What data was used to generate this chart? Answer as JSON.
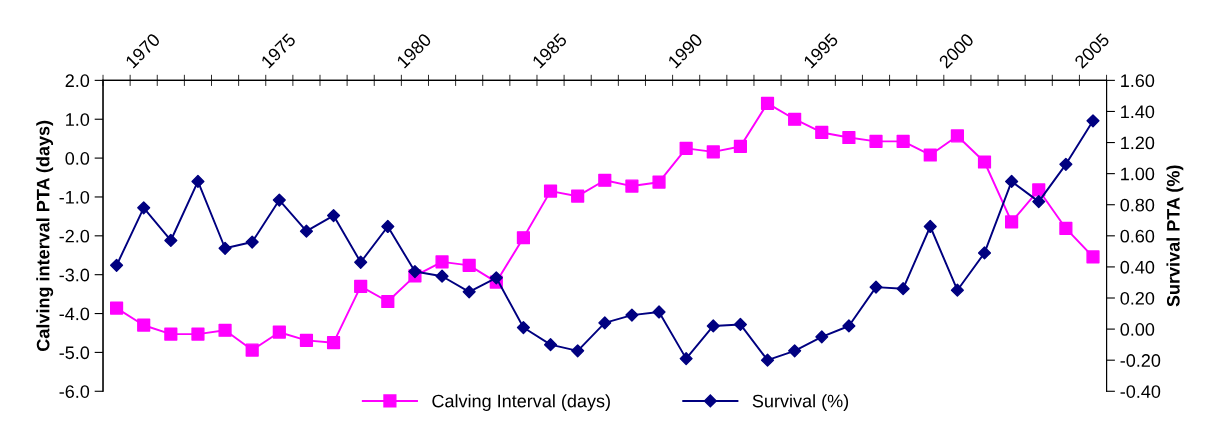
{
  "chart_data": {
    "type": "line",
    "xlabel": null,
    "ylabel": "Calving interval PTA (days)",
    "y2label": "Survival PTA (%)",
    "categories": [
      null,
      "1970",
      null,
      null,
      null,
      null,
      "1975",
      null,
      null,
      null,
      null,
      "1980",
      null,
      null,
      null,
      null,
      "1985",
      null,
      null,
      null,
      null,
      "1990",
      null,
      null,
      null,
      null,
      "1995",
      null,
      null,
      null,
      null,
      "2000",
      null,
      null,
      null,
      null,
      "2005"
    ],
    "series": [
      {
        "name": "Calving Interval (days)",
        "color": "#ff00ff",
        "marker": "square",
        "values": [
          -3.86,
          -4.3,
          -4.53,
          -4.53,
          -4.43,
          -4.94,
          -4.48,
          -4.69,
          -4.75,
          -3.3,
          -3.69,
          -3.03,
          -2.67,
          -2.76,
          -3.19,
          -2.05,
          -0.85,
          -0.98,
          -0.57,
          -0.72,
          -0.62,
          0.25,
          0.16,
          0.3,
          1.41,
          1.0,
          0.66,
          0.53,
          0.43,
          0.43,
          0.08,
          0.57,
          -0.1,
          -1.64,
          -0.82,
          -1.81,
          -2.54
        ]
      },
      {
        "name": "Survival (%)",
        "color": "#000080",
        "marker": "diamond",
        "axis": "y2",
        "values": [
          0.41,
          0.78,
          0.57,
          0.95,
          0.52,
          0.56,
          0.83,
          0.63,
          0.73,
          0.43,
          0.66,
          0.37,
          0.34,
          0.24,
          0.33,
          0.01,
          -0.1,
          -0.14,
          0.04,
          0.09,
          0.11,
          -0.19,
          0.02,
          0.03,
          -0.2,
          -0.14,
          -0.05,
          0.02,
          0.27,
          0.26,
          0.66,
          0.25,
          0.49,
          0.95,
          0.82,
          1.06,
          1.34
        ]
      }
    ],
    "ylim": [
      -6,
      2
    ],
    "yticks": [
      {
        "value": -6,
        "label": "-6.0"
      },
      {
        "value": -5,
        "label": "-5.0"
      },
      {
        "value": -4,
        "label": "-4.0"
      },
      {
        "value": -3,
        "label": "-3.0"
      },
      {
        "value": -2,
        "label": "-2.0"
      },
      {
        "value": -1,
        "label": "-1.0"
      },
      {
        "value": 0,
        "label": "0.0"
      },
      {
        "value": 1,
        "label": "1.0"
      },
      {
        "value": 2,
        "label": "2.0"
      }
    ],
    "y2lim": [
      -0.4,
      1.6
    ],
    "y2ticks": [
      {
        "value": -0.4,
        "label": "-0.40"
      },
      {
        "value": -0.2,
        "label": "-0.20"
      },
      {
        "value": 0,
        "label": "0.00"
      },
      {
        "value": 0.2,
        "label": "0.20"
      },
      {
        "value": 0.4,
        "label": "0.40"
      },
      {
        "value": 0.6,
        "label": "0.60"
      },
      {
        "value": 0.8,
        "label": "0.80"
      },
      {
        "value": 1.0,
        "label": "1.00"
      },
      {
        "value": 1.2,
        "label": "1.20"
      },
      {
        "value": 1.4,
        "label": "1.40"
      },
      {
        "value": 1.6,
        "label": "1.60"
      }
    ],
    "grid": false,
    "legend": "bottom",
    "line_style": "solid"
  }
}
